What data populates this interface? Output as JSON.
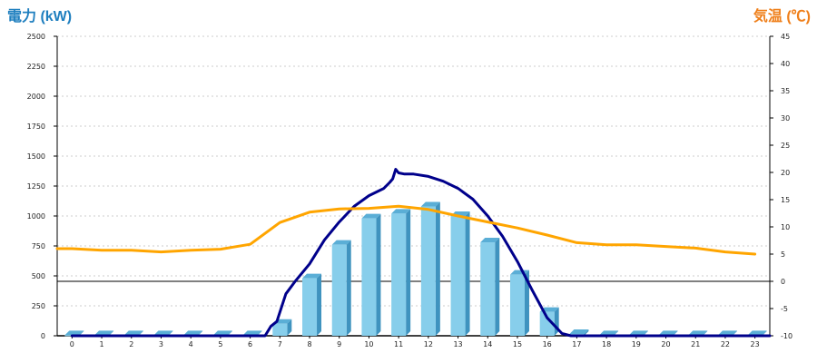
{
  "chart_data": {
    "type": "bar",
    "left_axis_title": "電力 (kW)",
    "right_axis_title": "気温 (℃)",
    "categories": [
      "0",
      "1",
      "2",
      "3",
      "4",
      "5",
      "6",
      "7",
      "8",
      "9",
      "10",
      "11",
      "12",
      "13",
      "14",
      "15",
      "16",
      "17",
      "18",
      "19",
      "20",
      "21",
      "22",
      "23"
    ],
    "y_left": {
      "range": [
        0,
        2500
      ],
      "ticks": [
        "0",
        "250",
        "500",
        "750",
        "1000",
        "1250",
        "1500",
        "1750",
        "2000",
        "2250",
        "2500"
      ]
    },
    "y_right": {
      "range": [
        -10,
        45
      ],
      "ticks": [
        "-10",
        "-5",
        "0",
        "5",
        "10",
        "15",
        "20",
        "25",
        "30",
        "35",
        "40",
        "45"
      ]
    },
    "grid": true,
    "series": [
      {
        "kind": "bar3d",
        "axis": "left",
        "color": "#87ceeb",
        "values": [
          5,
          5,
          5,
          5,
          5,
          5,
          5,
          100,
          480,
          760,
          980,
          1020,
          1080,
          1000,
          780,
          510,
          200,
          15,
          5,
          5,
          5,
          5,
          5,
          5
        ]
      },
      {
        "kind": "line",
        "axis": "left",
        "color": "#00008b",
        "points": [
          [
            0,
            0
          ],
          [
            6.5,
            0
          ],
          [
            6.7,
            80
          ],
          [
            6.9,
            120
          ],
          [
            7.2,
            350
          ],
          [
            7.5,
            450
          ],
          [
            8,
            600
          ],
          [
            8.5,
            800
          ],
          [
            9,
            950
          ],
          [
            9.5,
            1080
          ],
          [
            10,
            1170
          ],
          [
            10.5,
            1230
          ],
          [
            10.7,
            1280
          ],
          [
            10.8,
            1310
          ],
          [
            10.9,
            1390
          ],
          [
            11.0,
            1360
          ],
          [
            11.2,
            1350
          ],
          [
            11.5,
            1350
          ],
          [
            12,
            1330
          ],
          [
            12.5,
            1290
          ],
          [
            13,
            1230
          ],
          [
            13.5,
            1140
          ],
          [
            14,
            1000
          ],
          [
            14.5,
            830
          ],
          [
            15,
            620
          ],
          [
            15.5,
            380
          ],
          [
            16,
            150
          ],
          [
            16.5,
            20
          ],
          [
            16.8,
            0
          ],
          [
            23.5,
            0
          ]
        ]
      },
      {
        "kind": "line",
        "axis": "right",
        "color": "#ffa500",
        "points": [
          [
            -0.5,
            6
          ],
          [
            0,
            6
          ],
          [
            1,
            5.7
          ],
          [
            2,
            5.7
          ],
          [
            3,
            5.4
          ],
          [
            4,
            5.7
          ],
          [
            5,
            5.9
          ],
          [
            6,
            6.8
          ],
          [
            7,
            10.8
          ],
          [
            8,
            12.7
          ],
          [
            9,
            13.3
          ],
          [
            10,
            13.4
          ],
          [
            11,
            13.8
          ],
          [
            12,
            13.2
          ],
          [
            13,
            12
          ],
          [
            14,
            10.9
          ],
          [
            15,
            9.8
          ],
          [
            16,
            8.5
          ],
          [
            17,
            7.1
          ],
          [
            18,
            6.7
          ],
          [
            19,
            6.7
          ],
          [
            20,
            6.4
          ],
          [
            21,
            6.1
          ],
          [
            22,
            5.4
          ],
          [
            23,
            5
          ]
        ]
      }
    ]
  }
}
